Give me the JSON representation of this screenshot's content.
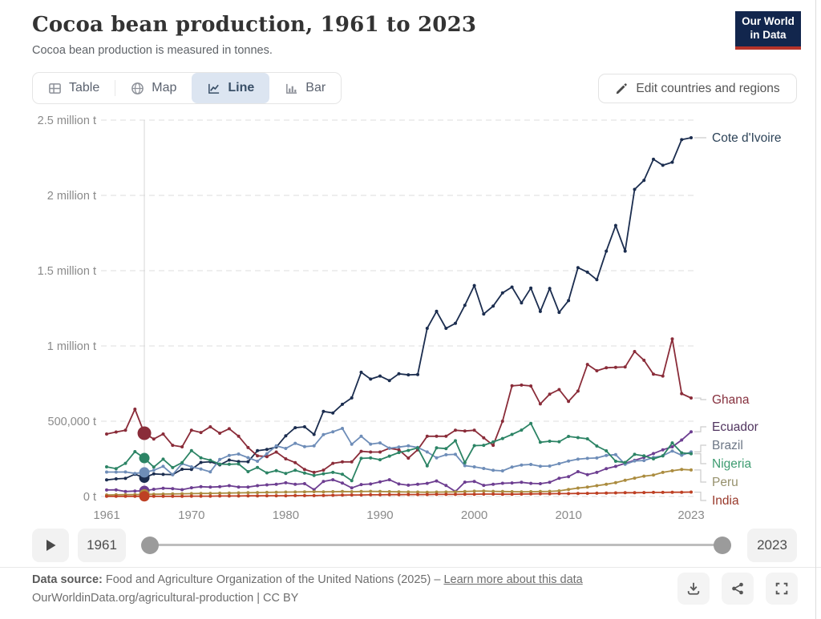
{
  "header": {
    "title": "Cocoa bean production, 1961 to 2023",
    "subtitle": "Cocoa bean production is measured in tonnes.",
    "logo": {
      "line1": "Our World",
      "line2": "in Data",
      "bg_color": "#12264d",
      "stripe_color": "#b5332a"
    }
  },
  "toolbar": {
    "tabs": [
      {
        "label": "Table",
        "icon": "table-icon",
        "active": false
      },
      {
        "label": "Map",
        "icon": "globe-icon",
        "active": false
      },
      {
        "label": "Line",
        "icon": "line-chart-icon",
        "active": true
      },
      {
        "label": "Bar",
        "icon": "bar-chart-icon",
        "active": false
      }
    ],
    "active_tab_bg": "#dce5f1",
    "edit_button_label": "Edit countries and regions",
    "edit_button_icon": "pencil-icon"
  },
  "chart_data": {
    "type": "line",
    "title": "Cocoa bean production, 1961 to 2023",
    "unit": "tonnes",
    "x_note": "annual values, one per year from 1961 to 2023",
    "xlim": [
      1961,
      2023
    ],
    "ylim": [
      0,
      2500000
    ],
    "grid": true,
    "hover_year": 1965,
    "x_ticks": [
      1961,
      1970,
      1980,
      1990,
      2000,
      2010,
      2023
    ],
    "y_ticks": [
      {
        "value": 0,
        "label": "0 t"
      },
      {
        "value": 500000,
        "label": "500,000 t"
      },
      {
        "value": 1000000,
        "label": "1 million t"
      },
      {
        "value": 1500000,
        "label": "1.5 million t"
      },
      {
        "value": 2000000,
        "label": "2 million t"
      },
      {
        "value": 2500000,
        "label": "2.5 million t"
      }
    ],
    "legend_position": "right-end-labels",
    "series": [
      {
        "name": "Cote d'Ivoire",
        "color": "#1b2d4f",
        "label_color": "#2d4358",
        "values": [
          110000,
          117000,
          120000,
          148000,
          125000,
          150000,
          147000,
          145000,
          181000,
          180000,
          226000,
          231000,
          210000,
          242000,
          232000,
          231000,
          304000,
          312000,
          328000,
          403000,
          457000,
          463000,
          412000,
          565000,
          555000,
          612000,
          655000,
          825000,
          780000,
          800000,
          770000,
          815000,
          808000,
          810000,
          1117000,
          1230000,
          1117000,
          1150000,
          1270000,
          1401000,
          1212000,
          1265000,
          1352000,
          1391000,
          1286000,
          1384000,
          1229000,
          1382000,
          1223000,
          1301000,
          1520000,
          1490000,
          1440000,
          1630000,
          1800000,
          1630000,
          2040000,
          2100000,
          2240000,
          2200000,
          2220000,
          2370000,
          2383000
        ]
      },
      {
        "name": "Ghana",
        "color": "#8a2c39",
        "label_color": "#86303e",
        "values": [
          415000,
          428000,
          440000,
          580000,
          420000,
          382000,
          415000,
          340000,
          330000,
          440000,
          425000,
          463000,
          420000,
          450000,
          400000,
          325000,
          270000,
          265000,
          295000,
          250000,
          225000,
          180000,
          160000,
          175000,
          220000,
          230000,
          230000,
          300000,
          295000,
          295000,
          320000,
          310000,
          255000,
          310000,
          400000,
          400000,
          400000,
          440000,
          435000,
          440000,
          390000,
          340000,
          500000,
          735000,
          740000,
          734000,
          615000,
          680000,
          710000,
          632000,
          700000,
          877000,
          835000,
          855000,
          858000,
          860000,
          963000,
          905000,
          812000,
          800000,
          1047000,
          683000,
          654000
        ]
      },
      {
        "name": "Ecuador",
        "color": "#6d3e91",
        "label_color": "#50345f",
        "values": [
          43000,
          44000,
          33000,
          36000,
          37000,
          48000,
          55000,
          52000,
          45000,
          58000,
          65000,
          62000,
          65000,
          72000,
          63000,
          63000,
          72000,
          77000,
          81000,
          91000,
          81000,
          85000,
          45000,
          100000,
          111000,
          89000,
          57000,
          79000,
          83000,
          97000,
          111000,
          83000,
          75000,
          81000,
          87000,
          103000,
          73000,
          33000,
          95000,
          100000,
          74000,
          81000,
          88000,
          90000,
          94000,
          87000,
          85000,
          94000,
          121000,
          132000,
          165000,
          145000,
          160000,
          185000,
          200000,
          220000,
          240000,
          260000,
          285000,
          310000,
          330000,
          375000,
          430000
        ]
      },
      {
        "name": "Brazil",
        "color": "#6e8db8",
        "label_color": "#6c7685",
        "values": [
          162000,
          162000,
          163000,
          153000,
          160000,
          174000,
          200000,
          145000,
          218000,
          197000,
          182000,
          164000,
          246000,
          273000,
          282000,
          258000,
          234000,
          284000,
          336000,
          319000,
          353000,
          331000,
          336000,
          411000,
          430000,
          452000,
          347000,
          400000,
          348000,
          356000,
          320000,
          328000,
          336000,
          326000,
          296000,
          257000,
          277000,
          280000,
          205000,
          197000,
          186000,
          174000,
          170000,
          196000,
          209000,
          213000,
          201000,
          202000,
          218000,
          235000,
          248000,
          253000,
          256000,
          273000,
          278000,
          214000,
          236000,
          239000,
          259000,
          270000,
          302000,
          274000,
          296000
        ]
      },
      {
        "name": "Nigeria",
        "color": "#2c8465",
        "label_color": "#3e9c71",
        "values": [
          197000,
          185000,
          220000,
          298000,
          255000,
          195000,
          248000,
          192000,
          225000,
          305000,
          257000,
          241000,
          215000,
          214000,
          216000,
          165000,
          193000,
          157000,
          172000,
          153000,
          174000,
          156000,
          140000,
          151000,
          160000,
          148000,
          105000,
          253000,
          256000,
          244000,
          268000,
          292000,
          306000,
          323000,
          203000,
          323000,
          318000,
          370000,
          225000,
          338000,
          340000,
          362000,
          385000,
          412000,
          441000,
          485000,
          360000,
          367000,
          364000,
          399000,
          391000,
          383000,
          335000,
          303000,
          234000,
          226000,
          280000,
          270000,
          250000,
          270000,
          356000,
          290000,
          284000
        ]
      },
      {
        "name": "Peru",
        "color": "#ab8c3f",
        "label_color": "#96906c",
        "values": [
          10000,
          11000,
          12000,
          13000,
          14000,
          15000,
          16000,
          17000,
          18000,
          19000,
          20000,
          21000,
          22000,
          23000,
          24000,
          25000,
          26000,
          27000,
          28000,
          29000,
          30000,
          31000,
          32000,
          31000,
          32000,
          33000,
          32000,
          33000,
          34000,
          33000,
          32000,
          31000,
          30000,
          29000,
          28000,
          29000,
          30000,
          31000,
          33000,
          35000,
          36000,
          34000,
          33000,
          32000,
          31000,
          32000,
          33000,
          34000,
          37000,
          47000,
          56000,
          62000,
          72000,
          81000,
          92000,
          108000,
          122000,
          135000,
          142000,
          160000,
          171000,
          180000,
          176000
        ]
      },
      {
        "name": "India",
        "color": "#be4024",
        "label_color": "#99392b",
        "values": [
          1000,
          1000,
          1000,
          1000,
          1000,
          1000,
          1000,
          1000,
          1000,
          2000,
          2000,
          2000,
          3000,
          3000,
          3000,
          4000,
          4000,
          5000,
          5000,
          5000,
          6000,
          6000,
          6000,
          7000,
          8000,
          9000,
          10000,
          10000,
          11000,
          11000,
          12000,
          12000,
          13000,
          13000,
          13000,
          14000,
          14000,
          14000,
          15000,
          15000,
          16000,
          16000,
          15000,
          15000,
          16000,
          17000,
          18000,
          18000,
          19000,
          19000,
          20000,
          21000,
          22000,
          23000,
          24000,
          25000,
          25000,
          26000,
          27000,
          27000,
          28000,
          28000,
          29000
        ]
      }
    ]
  },
  "timeline": {
    "play_icon": "play-icon",
    "start_year": "1961",
    "end_year": "2023"
  },
  "footer": {
    "source_bold": "Data source:",
    "source_text": " Food and Agriculture Organization of the United Nations (2025) – ",
    "source_link": "Learn more about this data",
    "citation": "OurWorldinData.org/agricultural-production | CC BY",
    "icons": [
      "download-icon",
      "share-icon",
      "fullscreen-icon"
    ]
  }
}
